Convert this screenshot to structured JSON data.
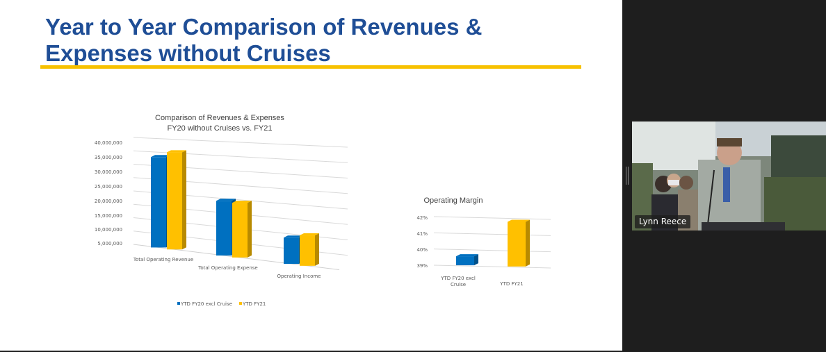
{
  "slide": {
    "title": "Year to Year Comparison of Revenues & Expenses without Cruises",
    "accent_color": "#f7c100",
    "title_color": "#1f4e96"
  },
  "chart_data": [
    {
      "type": "bar",
      "title": "Comparison of Revenues & Expenses FY20 without Cruises vs. FY21",
      "title_lines": [
        "Comparison of Revenues & Expenses",
        "FY20 without Cruises vs. FY21"
      ],
      "categories": [
        "Total Operating Revenue",
        "Total Operating Expense",
        "Operating Income"
      ],
      "series": [
        {
          "name": "YTD FY20  excl Cruise",
          "color": "#0070c0",
          "values": [
            33200000,
            19200000,
            8800000
          ]
        },
        {
          "name": "YTD FY21",
          "color": "#ffc000",
          "values": [
            35300000,
            19000000,
            10100000
          ]
        }
      ],
      "y_ticks": [
        "40,000,000",
        "35,000,000",
        "30,000,000",
        "25,000,000",
        "20,000,000",
        "15,000,000",
        "10,000,000",
        "5,000,000"
      ],
      "ylim": [
        0,
        40000000
      ],
      "grid": true,
      "legend_position": "bottom"
    },
    {
      "type": "bar",
      "title": "Operating Margin",
      "categories": [
        "YTD FY20  excl Cruise",
        "YTD FY21"
      ],
      "category_lines": [
        [
          "YTD FY20  excl",
          "Cruise"
        ],
        [
          "YTD FY21"
        ]
      ],
      "series": [
        {
          "name": "Operating Margin",
          "colors": [
            "#0070c0",
            "#ffc000"
          ],
          "values": [
            39.6,
            41.8
          ]
        }
      ],
      "y_ticks": [
        "42%",
        "41%",
        "40%",
        "39%"
      ],
      "ylim": [
        39,
        42
      ],
      "grid": true
    }
  ],
  "video": {
    "participant_name": "Lynn Reece"
  }
}
